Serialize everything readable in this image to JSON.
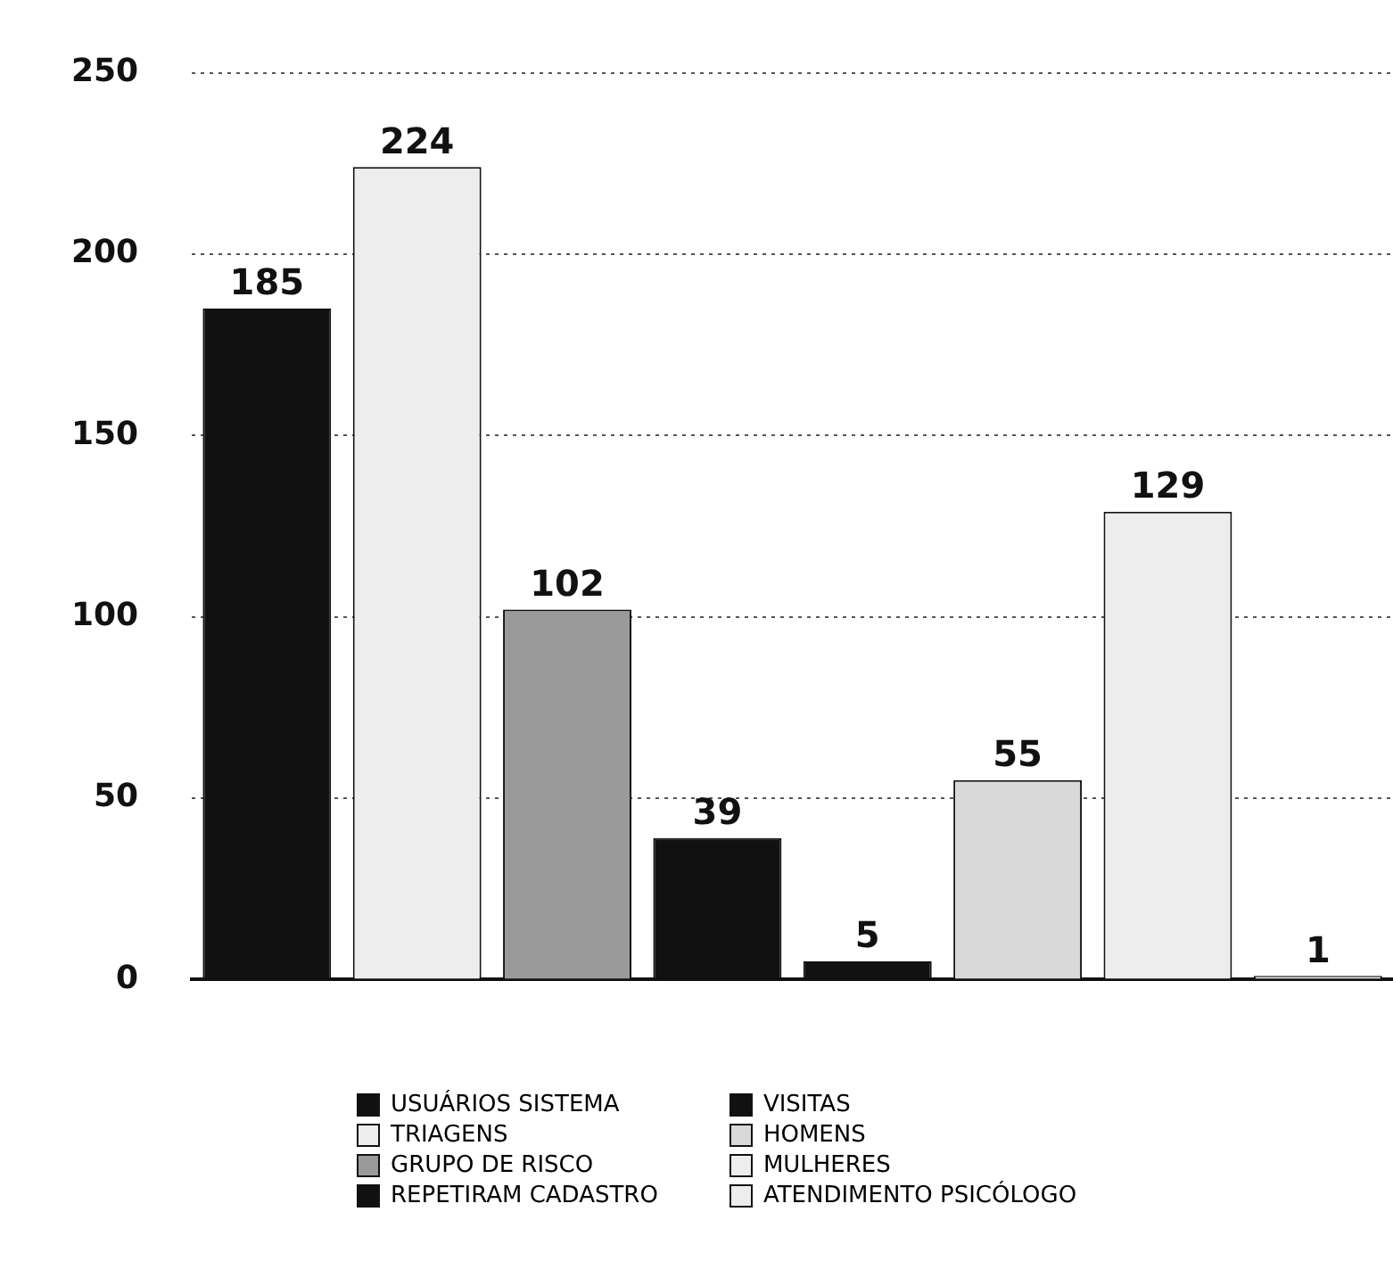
{
  "chart_data": {
    "type": "bar",
    "categories": [
      null,
      null,
      null,
      null,
      null,
      null,
      null,
      null
    ],
    "series": [
      {
        "name": "USUÁRIOS SISTEMA",
        "color": "#111111",
        "values": [
          185,
          null,
          null,
          null,
          null,
          null,
          null,
          null
        ]
      },
      {
        "name": "TRIAGENS",
        "color": "#ededed",
        "values": [
          null,
          224,
          null,
          null,
          null,
          null,
          null,
          null
        ]
      },
      {
        "name": "GRUPO DE RISCO",
        "color": "#9a9a9a",
        "values": [
          null,
          null,
          102,
          null,
          null,
          null,
          null,
          null
        ]
      },
      {
        "name": "REPETIRAM CADASTRO",
        "color": "#111111",
        "values": [
          null,
          null,
          null,
          39,
          null,
          null,
          null,
          null
        ]
      },
      {
        "name": "VISITAS",
        "color": "#111111",
        "values": [
          null,
          null,
          null,
          null,
          5,
          null,
          null,
          null
        ]
      },
      {
        "name": "HOMENS",
        "color": "#d9d9d9",
        "values": [
          null,
          null,
          null,
          null,
          null,
          55,
          null,
          null
        ]
      },
      {
        "name": "MULHERES",
        "color": "#ededed",
        "values": [
          null,
          null,
          null,
          null,
          null,
          null,
          129,
          null
        ]
      },
      {
        "name": "ATENDIMENTO PSICÓLOGO",
        "color": "#ededed",
        "values": [
          null,
          null,
          null,
          null,
          null,
          null,
          null,
          1
        ]
      }
    ],
    "ylim": [
      0,
      250
    ],
    "yticks": [
      0,
      50,
      100,
      150,
      200,
      250
    ],
    "grid": "y",
    "legend": "bottom",
    "data_labels": true,
    "tick_labels": "y"
  }
}
